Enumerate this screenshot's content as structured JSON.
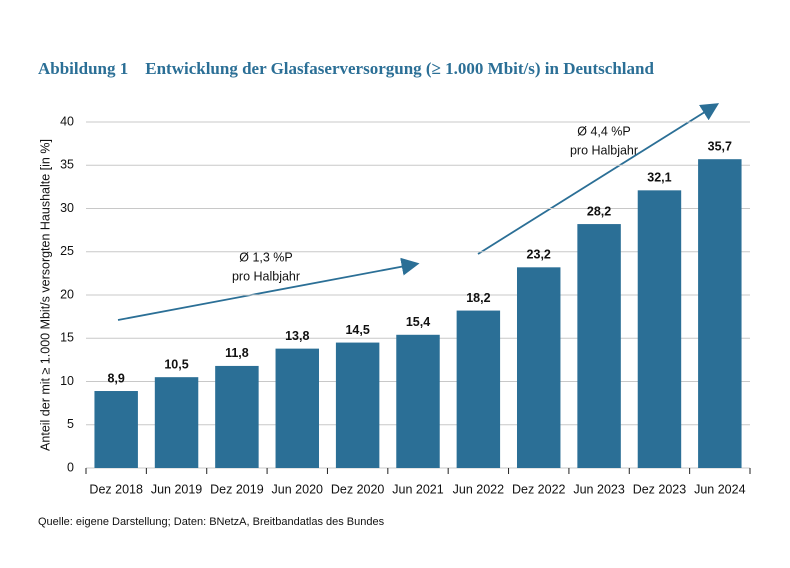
{
  "chart_data": {
    "type": "bar",
    "title": "Abbildung 1    Entwicklung der Glasfaserversorgung (≥ 1.000 Mbit/s) in Deutschland",
    "y_label": "Anteil der mit ≥ 1.000 Mbit/s versorgten Haushalte [in %]",
    "categories": [
      "Dez 2018",
      "Jun 2019",
      "Dez 2019",
      "Jun 2020",
      "Dez 2020",
      "Jun 2021",
      "Jun 2022",
      "Dez 2022",
      "Jun 2023",
      "Dez 2023",
      "Jun 2024"
    ],
    "values": [
      8.9,
      10.5,
      11.8,
      13.8,
      14.5,
      15.4,
      18.2,
      23.2,
      28.2,
      32.1,
      35.7
    ],
    "value_labels": [
      "8,9",
      "10,5",
      "11,8",
      "13,8",
      "14,5",
      "15,4",
      "18,2",
      "23,2",
      "28,2",
      "32,1",
      "35,7"
    ],
    "color": "#2b6f96",
    "ylim": [
      0,
      40
    ],
    "yticks": [
      0,
      5,
      10,
      15,
      20,
      25,
      30,
      35,
      40
    ],
    "grid": true,
    "annotations": [
      [
        "Ø 1,3 %P",
        "pro Halbjahr"
      ],
      [
        "Ø 4,4 %P",
        "pro Halbjahr"
      ]
    ],
    "source": "Quelle: eigene Darstellung; Daten: BNetzA, Breitbandatlas des Bundes"
  }
}
